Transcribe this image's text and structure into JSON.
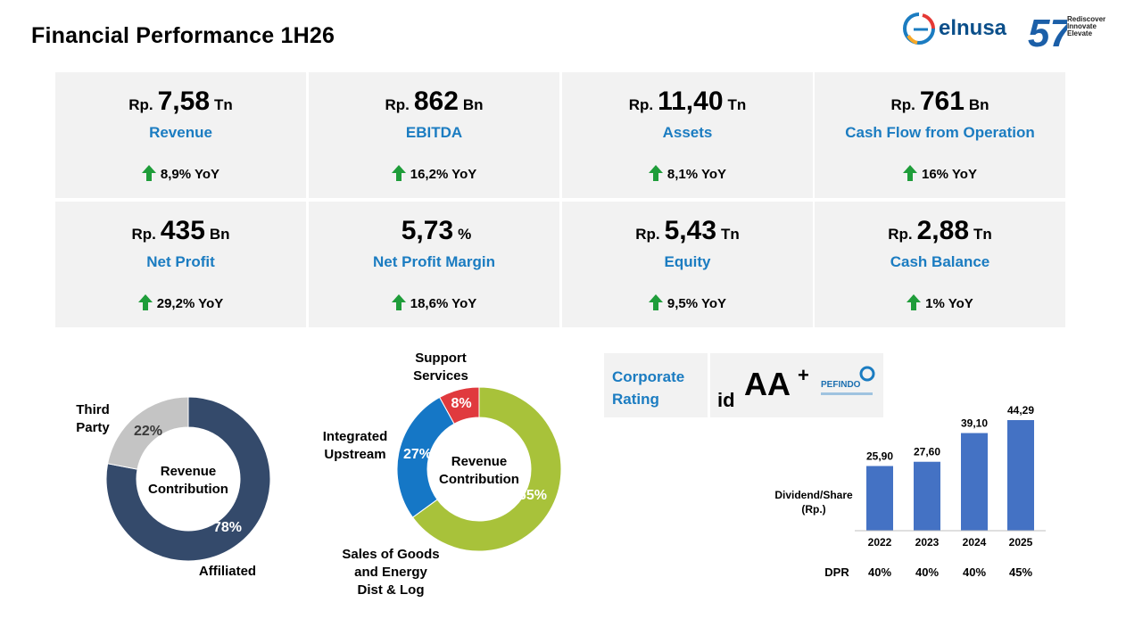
{
  "header": {
    "title": "Financial Performance 1H26"
  },
  "brand": {
    "name": "elnusa",
    "tagline": [
      "Rediscover",
      "Innovate",
      "Elevate"
    ],
    "anniversary_glyph": "57"
  },
  "kpis": [
    {
      "prefix": "Rp.",
      "value": "7,58",
      "unit": "Tn",
      "label": "Revenue",
      "yoy": "8,9% YoY"
    },
    {
      "prefix": "Rp.",
      "value": "862",
      "unit": "Bn",
      "label": "EBITDA",
      "yoy": "16,2% YoY"
    },
    {
      "prefix": "Rp.",
      "value": "11,40",
      "unit": "Tn",
      "label": "Assets",
      "yoy": "8,1% YoY"
    },
    {
      "prefix": "Rp.",
      "value": "761",
      "unit": "Bn",
      "label": "Cash Flow from Operation",
      "yoy": "16% YoY"
    },
    {
      "prefix": "Rp.",
      "value": "435",
      "unit": "Bn",
      "label": "Net Profit",
      "yoy": "29,2% YoY"
    },
    {
      "prefix": "",
      "value": "5,73",
      "unit": "%",
      "label": "Net Profit Margin",
      "yoy": "18,6% YoY"
    },
    {
      "prefix": "Rp.",
      "value": "5,43",
      "unit": "Tn",
      "label": "Equity",
      "yoy": "9,5% YoY"
    },
    {
      "prefix": "Rp.",
      "value": "2,88",
      "unit": "Tn",
      "label": "Cash Balance",
      "yoy": "1% YoY"
    }
  ],
  "rating": {
    "label_line1": "Corporate",
    "label_line2": "Rating",
    "prefix": "id",
    "grade": "AA",
    "modifier": "+",
    "agency": "PEFINDO"
  },
  "colors": {
    "accent_blue": "#1b7cc1",
    "up_arrow": "#1f9d3a",
    "card_bg": "#f2f2f2"
  },
  "chart_data": [
    {
      "type": "pie",
      "center_label": [
        "Revenue",
        "Contribution"
      ],
      "categories": [
        "Affiliated",
        "Third Party"
      ],
      "category_lines": [
        [
          "Affiliated"
        ],
        [
          "Third",
          "Party"
        ]
      ],
      "values": [
        78,
        22
      ],
      "value_labels": [
        "78%",
        "22%"
      ],
      "colors": [
        "#344a6b",
        "#c4c4c4"
      ]
    },
    {
      "type": "pie",
      "center_label": [
        "Revenue",
        "Contribution"
      ],
      "categories": [
        "Sales of Goods and Energy Dist & Log",
        "Integrated Upstream",
        "Support Services"
      ],
      "category_lines": [
        [
          "Sales of Goods",
          "and Energy",
          "Dist & Log"
        ],
        [
          "Integrated",
          "Upstream"
        ],
        [
          "Support",
          "Services"
        ]
      ],
      "values": [
        65,
        27,
        8
      ],
      "value_labels": [
        "65%",
        "27%",
        "8%"
      ],
      "colors": [
        "#a8c23a",
        "#1577c6",
        "#e03a3e"
      ]
    },
    {
      "type": "bar",
      "ylabel_lines": [
        "Dividend/Share",
        "(Rp.)"
      ],
      "categories": [
        "2022",
        "2023",
        "2024",
        "2025"
      ],
      "values": [
        25.9,
        27.6,
        39.1,
        44.29
      ],
      "value_labels": [
        "25,90",
        "27,60",
        "39,10",
        "44,29"
      ],
      "row_label": "DPR",
      "row_values": [
        "40%",
        "40%",
        "40%",
        "45%"
      ],
      "ylim": [
        0,
        50
      ],
      "color": "#4472c4"
    }
  ]
}
